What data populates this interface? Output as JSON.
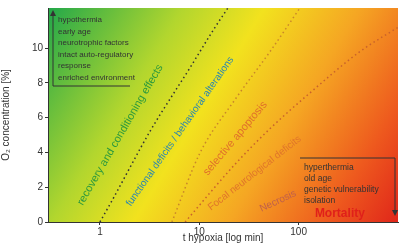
{
  "chart_data": {
    "type": "line",
    "x_label": "t hypoxia [log min]",
    "y_label": "O₂ concentration [%]",
    "log": "x",
    "grid": false,
    "xlim": [
      0.3,
      1000
    ],
    "xticks": [
      1,
      10,
      100
    ],
    "ylim": [
      0,
      12.3
    ],
    "yticks": [
      0,
      2,
      4,
      6,
      8,
      10
    ],
    "series": [
      {
        "x": [
          1,
          1.32,
          3.19,
          8.05,
          14.4,
          19.4
        ],
        "values": [
          0,
          1.22,
          5.21,
          8.86,
          11.19,
          12.3
        ],
        "color": "#333333",
        "line_style": "dotted"
      },
      {
        "x": [
          5.3,
          10.2,
          22.9,
          51.6,
          103
        ],
        "values": [
          0,
          3.99,
          7.04,
          9.8,
          12.3
        ],
        "color": "#c9862a",
        "line_style": "dotted"
      },
      {
        "x": [
          7.2,
          22.9,
          51.6,
          130,
          415,
          1000
        ],
        "values": [
          0,
          3.32,
          5.37,
          7.42,
          9.8,
          11.19
        ],
        "color": "#c9622a",
        "line_style": "dotted"
      }
    ],
    "annotations": [
      {
        "text": "recovery and conditioning effects",
        "x": 1.6,
        "y": 5.0,
        "color": "#2e9a3c"
      },
      {
        "text": "functional deficits / behavioral alterations",
        "x": 6.4,
        "y": 5.2,
        "color": "#2a86b0"
      },
      {
        "text": "selective apoptosis",
        "x": 23,
        "y": 4.8,
        "color": "#e0702a"
      },
      {
        "text": "Focal neurological deficits",
        "x": 36,
        "y": 2.8,
        "color": "#e0752a"
      },
      {
        "text": "Necrosis",
        "x": 62,
        "y": 1.2,
        "color": "#c0604a"
      },
      {
        "text": "Mortality",
        "x": 260,
        "y": 0.5,
        "color": "#e0201a"
      }
    ],
    "notes": [
      {
        "lines": [
          "hypothermia",
          "early age",
          "neurotrophic factors",
          "intact auto-regulatory",
          "response",
          "enriched environment"
        ]
      },
      {
        "lines": [
          "hyperthermia",
          "old age",
          "genetic vulnerability",
          "isolation"
        ]
      }
    ]
  }
}
